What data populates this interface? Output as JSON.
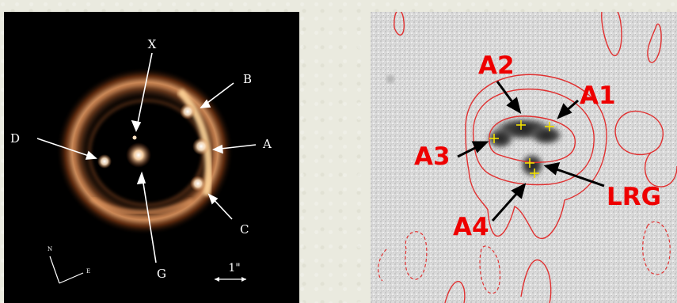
{
  "left_image": {
    "labels": {
      "x": "X",
      "b": "B",
      "a": "A",
      "c": "C",
      "d": "D",
      "g": "G",
      "scale": "1\"",
      "north": "N",
      "east": "E"
    }
  },
  "right_image": {
    "labels": {
      "a1": "A1",
      "a2": "A2",
      "a3": "A3",
      "a4": "A4",
      "lrg": "LRG"
    }
  },
  "colors": {
    "ring_light": "#f7c48f",
    "ring_dark": "#8a3a14",
    "contour": "#e03030",
    "label_red": "#ee0000",
    "marker_yellow": "#f2e000"
  }
}
